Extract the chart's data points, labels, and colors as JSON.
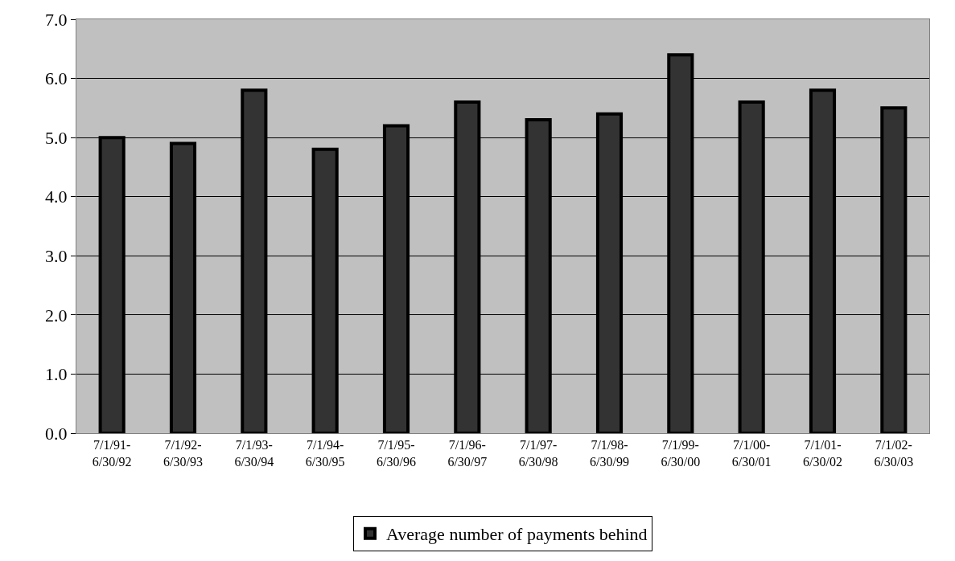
{
  "chart_data": {
    "type": "bar",
    "categories": [
      "7/1/91-\n6/30/92",
      "7/1/92-\n6/30/93",
      "7/1/93-\n6/30/94",
      "7/1/94-\n6/30/95",
      "7/1/95-\n6/30/96",
      "7/1/96-\n6/30/97",
      "7/1/97-\n6/30/98",
      "7/1/98-\n6/30/99",
      "7/1/99-\n6/30/00",
      "7/1/00-\n6/30/01",
      "7/1/01-\n6/30/02",
      "7/1/02-\n6/30/03"
    ],
    "series": [
      {
        "name": "Average number of payments behind",
        "color": "#333333",
        "values": [
          5.0,
          4.9,
          5.8,
          4.8,
          5.2,
          5.6,
          5.3,
          5.4,
          6.4,
          5.6,
          5.8,
          5.5
        ]
      }
    ],
    "ylim": [
      0,
      7
    ],
    "yticks": [
      {
        "value": 0,
        "label": "0.0"
      },
      {
        "value": 1,
        "label": "1.0"
      },
      {
        "value": 2,
        "label": "2.0"
      },
      {
        "value": 3,
        "label": "3.0"
      },
      {
        "value": 4,
        "label": "4.0"
      },
      {
        "value": 5,
        "label": "5.0"
      },
      {
        "value": 6,
        "label": "6.0"
      },
      {
        "value": 7,
        "label": "7.0"
      }
    ],
    "grid": "y",
    "legend": "bottom"
  }
}
